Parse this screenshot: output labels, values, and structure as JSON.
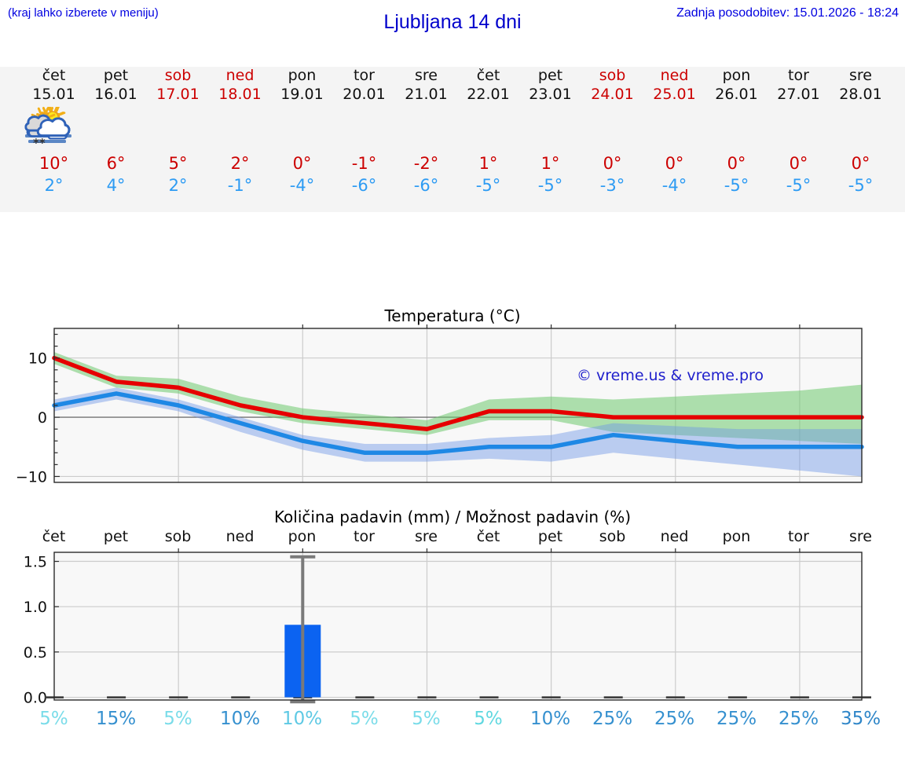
{
  "header": {
    "note": "(kraj lahko izberete v meniju)",
    "title": "Ljubljana 14 dni",
    "updated": "Zadnja posodobitev: 15.01.2026 - 18:24"
  },
  "colors": {
    "header_blue": "#0000e0",
    "title_blue": "#0000cc",
    "weekend_red": "#cc0000",
    "high_temp_red": "#cc0000",
    "low_temp_blue": "#2d9bf3",
    "strip_bg": "#f4f4f4",
    "plot_bg": "#f8f8f8",
    "grid_gray": "#cccccc",
    "spine_dark": "#2a2a2a",
    "temp_high_line": "#e60000",
    "temp_low_line": "#1e88e5",
    "high_band": "rgba(110,200,110,0.55)",
    "low_band": "rgba(110,150,230,0.45)",
    "precip_bar_blue": "#0b63f1",
    "whisker_gray": "#7a7a7a",
    "watermark_blue": "#2020cc"
  },
  "forecast": {
    "days": [
      {
        "name": "čet",
        "date": "15.01",
        "weekend": false,
        "icon": "sun-fog",
        "high": "10°",
        "low": "2°"
      },
      {
        "name": "pet",
        "date": "16.01",
        "weekend": false,
        "icon": "sun-fog",
        "high": "6°",
        "low": "4°"
      },
      {
        "name": "sob",
        "date": "17.01",
        "weekend": true,
        "icon": "sun-fog",
        "high": "5°",
        "low": "2°"
      },
      {
        "name": "ned",
        "date": "18.01",
        "weekend": true,
        "icon": "cloudy",
        "high": "2°",
        "low": "-1°"
      },
      {
        "name": "pon",
        "date": "19.01",
        "weekend": false,
        "icon": "sun-cloud-snow",
        "high": "0°",
        "low": "-4°"
      },
      {
        "name": "tor",
        "date": "20.01",
        "weekend": false,
        "icon": "sun-cloud",
        "high": "-1°",
        "low": "-6°"
      },
      {
        "name": "sre",
        "date": "21.01",
        "weekend": false,
        "icon": "cloudy",
        "high": "-2°",
        "low": "-6°"
      },
      {
        "name": "čet",
        "date": "22.01",
        "weekend": false,
        "icon": "sun-small-cloud",
        "high": "1°",
        "low": "-5°"
      },
      {
        "name": "pet",
        "date": "23.01",
        "weekend": false,
        "icon": "sun-small-cloud",
        "high": "1°",
        "low": "-5°"
      },
      {
        "name": "sob",
        "date": "24.01",
        "weekend": true,
        "icon": "cloudy",
        "high": "0°",
        "low": "-3°"
      },
      {
        "name": "ned",
        "date": "25.01",
        "weekend": true,
        "icon": "cloudy",
        "high": "0°",
        "low": "-4°"
      },
      {
        "name": "pon",
        "date": "26.01",
        "weekend": false,
        "icon": "cloudy",
        "high": "0°",
        "low": "-5°"
      },
      {
        "name": "tor",
        "date": "27.01",
        "weekend": false,
        "icon": "cloudy",
        "high": "0°",
        "low": "-5°"
      },
      {
        "name": "sre",
        "date": "28.01",
        "weekend": false,
        "icon": "cloudy",
        "high": "0°",
        "low": "-5°"
      }
    ]
  },
  "chart_data": [
    {
      "type": "line",
      "title": "Temperatura (°C)",
      "watermark": "© vreme.us & vreme.pro",
      "ylim": [
        -11,
        15
      ],
      "yticks": [
        10,
        0,
        -10
      ],
      "ytick_labels": [
        "10",
        "0",
        "−10"
      ],
      "grid_x_day_indices": [
        2,
        4,
        6,
        8,
        10,
        12
      ],
      "series": [
        {
          "name": "high",
          "color": "#e60000",
          "values": [
            10,
            6,
            5,
            2,
            0,
            -1,
            -2,
            1,
            1,
            0,
            0,
            0,
            0,
            0
          ]
        },
        {
          "name": "low",
          "color": "#1e88e5",
          "values": [
            2,
            4,
            2,
            -1,
            -4,
            -6,
            -6,
            -5,
            -5,
            -3,
            -4,
            -5,
            -5,
            -5
          ]
        }
      ],
      "bands": [
        {
          "name": "high-uncertainty",
          "color": "rgba(110,200,110,0.55)",
          "upper": [
            11,
            7,
            6.5,
            3.5,
            1.5,
            0.5,
            -0.5,
            3,
            3.5,
            3,
            3.5,
            4,
            4.5,
            5.5
          ],
          "lower": [
            9,
            5,
            4,
            1,
            -1,
            -2,
            -3,
            -0.5,
            -0.5,
            -2.5,
            -3,
            -3.5,
            -4,
            -4.5
          ]
        },
        {
          "name": "low-uncertainty",
          "color": "rgba(110,150,230,0.45)",
          "upper": [
            3,
            5,
            3,
            0,
            -3,
            -4.5,
            -4.5,
            -3.5,
            -3,
            -1,
            -1.5,
            -2,
            -2,
            -2
          ],
          "lower": [
            1,
            3,
            1,
            -2.5,
            -5.5,
            -7.5,
            -7.5,
            -7,
            -7.5,
            -6,
            -7,
            -8,
            -9,
            -10
          ]
        }
      ],
      "legend": "none",
      "grid": true
    },
    {
      "type": "bar",
      "title": "Količina padavin (mm) / Možnost padavin (%)",
      "categories": [
        "čet",
        "pet",
        "sob",
        "ned",
        "pon",
        "tor",
        "sre",
        "čet",
        "pet",
        "sob",
        "ned",
        "pon",
        "tor",
        "sre"
      ],
      "values": [
        0,
        0,
        0,
        0,
        0.8,
        0,
        0,
        0,
        0,
        0,
        0,
        0,
        0,
        0
      ],
      "whisker": {
        "x_index": 4,
        "low": -0.05,
        "high": 1.55
      },
      "ylim": [
        -0.03,
        1.6
      ],
      "yticks": [
        0.0,
        0.5,
        1.0,
        1.5
      ],
      "ytick_labels": [
        "0.0",
        "0.5",
        "1.0",
        "1.5"
      ],
      "grid_x_day_indices": [
        2,
        4,
        6,
        8,
        10,
        12
      ],
      "bar_color": "#0b63f1",
      "grid": true,
      "probabilities": [
        {
          "label": "5%",
          "color": "#7adce9"
        },
        {
          "label": "15%",
          "color": "#3590cf"
        },
        {
          "label": "5%",
          "color": "#7adce9"
        },
        {
          "label": "10%",
          "color": "#3590cf"
        },
        {
          "label": "10%",
          "color": "#5ec9e4"
        },
        {
          "label": "5%",
          "color": "#7adce9"
        },
        {
          "label": "5%",
          "color": "#7adce9"
        },
        {
          "label": "5%",
          "color": "#60d8e0"
        },
        {
          "label": "10%",
          "color": "#3590cf"
        },
        {
          "label": "25%",
          "color": "#3590cf"
        },
        {
          "label": "25%",
          "color": "#3590cf"
        },
        {
          "label": "25%",
          "color": "#3590cf"
        },
        {
          "label": "25%",
          "color": "#3590cf"
        },
        {
          "label": "35%",
          "color": "#2f86c8"
        }
      ]
    }
  ]
}
